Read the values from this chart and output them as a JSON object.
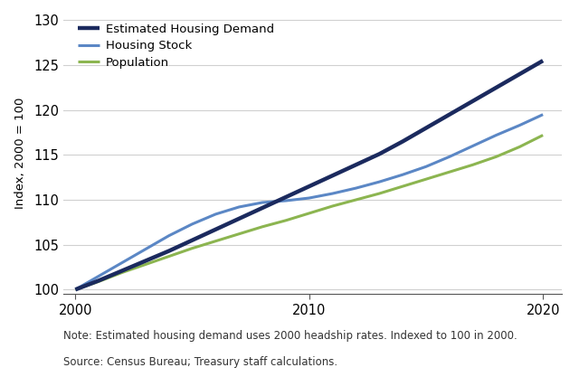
{
  "title": "",
  "ylabel": "Index, 2000 = 100",
  "xlabel": "",
  "xlim": [
    1999.5,
    2020.8
  ],
  "ylim": [
    99.5,
    131
  ],
  "yticks": [
    100,
    105,
    110,
    115,
    120,
    125,
    130
  ],
  "xticks": [
    2000,
    2010,
    2020
  ],
  "background_color": "#ffffff",
  "grid_color": "#d0d0d0",
  "series": {
    "demand": {
      "label": "Estimated Housing Demand",
      "color": "#1b2a5e",
      "linewidth": 3.2,
      "x": [
        2000,
        2001,
        2002,
        2003,
        2004,
        2005,
        2006,
        2007,
        2008,
        2009,
        2010,
        2011,
        2012,
        2013,
        2014,
        2015,
        2016,
        2017,
        2018,
        2019,
        2020
      ],
      "y": [
        100.0,
        101.0,
        102.1,
        103.2,
        104.3,
        105.5,
        106.7,
        107.9,
        109.1,
        110.3,
        111.5,
        112.7,
        113.9,
        115.1,
        116.5,
        118.0,
        119.5,
        121.0,
        122.5,
        124.0,
        125.5
      ]
    },
    "stock": {
      "label": "Housing Stock",
      "color": "#5b87c5",
      "linewidth": 2.2,
      "x": [
        2000,
        2001,
        2002,
        2003,
        2004,
        2005,
        2006,
        2007,
        2008,
        2009,
        2010,
        2011,
        2012,
        2013,
        2014,
        2015,
        2016,
        2017,
        2018,
        2019,
        2020
      ],
      "y": [
        100.0,
        101.5,
        103.0,
        104.5,
        106.0,
        107.3,
        108.4,
        109.2,
        109.7,
        109.9,
        110.2,
        110.7,
        111.3,
        112.0,
        112.8,
        113.7,
        114.8,
        116.0,
        117.2,
        118.3,
        119.5
      ]
    },
    "population": {
      "label": "Population",
      "color": "#8cb550",
      "linewidth": 2.2,
      "x": [
        2000,
        2001,
        2002,
        2003,
        2004,
        2005,
        2006,
        2007,
        2008,
        2009,
        2010,
        2011,
        2012,
        2013,
        2014,
        2015,
        2016,
        2017,
        2018,
        2019,
        2020
      ],
      "y": [
        100.0,
        100.9,
        101.9,
        102.8,
        103.7,
        104.6,
        105.4,
        106.2,
        107.0,
        107.7,
        108.5,
        109.3,
        110.0,
        110.7,
        111.5,
        112.3,
        113.1,
        113.9,
        114.8,
        115.9,
        117.2
      ]
    }
  },
  "note_line1": "Note: Estimated housing demand uses 2000 headship rates. Indexed to 100 in 2000.",
  "note_line2": "Source: Census Bureau; Treasury staff calculations.",
  "note_fontsize": 8.5,
  "tick_fontsize": 10.5,
  "ylabel_fontsize": 9.5,
  "legend_fontsize": 9.5
}
